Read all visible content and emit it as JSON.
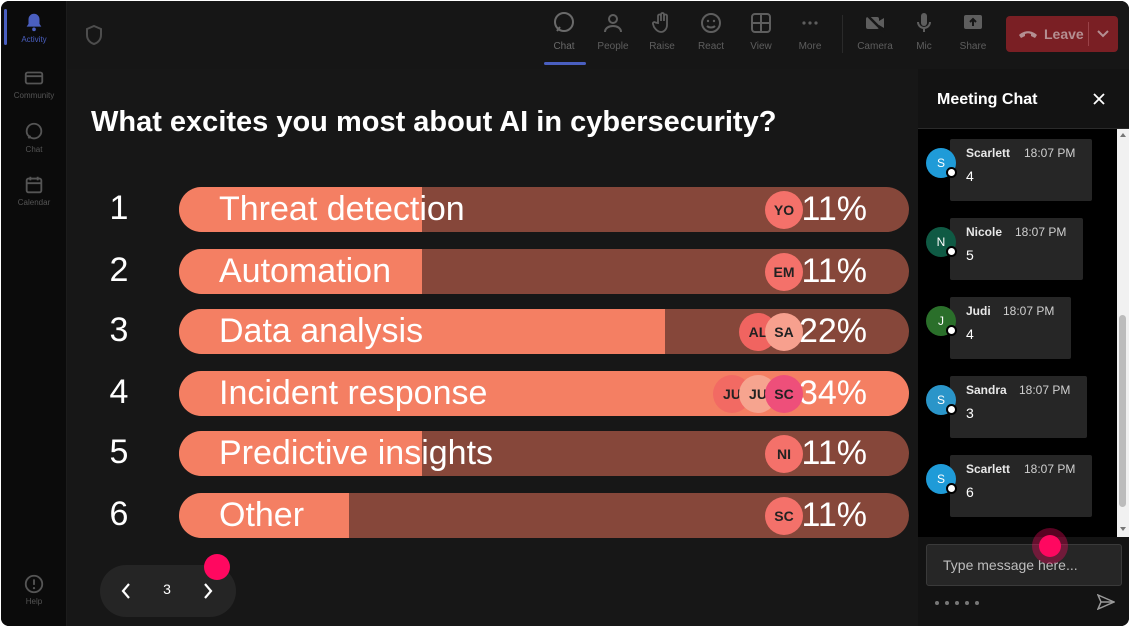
{
  "rail": {
    "items": [
      {
        "label": "Activity",
        "icon": "bell-icon",
        "active": true
      },
      {
        "label": "Community",
        "icon": "community-icon",
        "active": false
      },
      {
        "label": "Chat",
        "icon": "chat-icon",
        "active": false
      },
      {
        "label": "Calendar",
        "icon": "calendar-icon",
        "active": false
      }
    ],
    "help_label": "Help"
  },
  "toolbar": {
    "buttons": [
      {
        "label": "Chat",
        "icon": "chat-icon",
        "active": true
      },
      {
        "label": "People",
        "icon": "people-icon"
      },
      {
        "label": "Raise",
        "icon": "hand-icon"
      },
      {
        "label": "React",
        "icon": "emoji-icon"
      },
      {
        "label": "View",
        "icon": "grid-icon"
      },
      {
        "label": "More",
        "icon": "more-icon"
      },
      {
        "label": "Camera",
        "icon": "camera-off-icon"
      },
      {
        "label": "Mic",
        "icon": "mic-icon"
      },
      {
        "label": "Share",
        "icon": "share-icon"
      }
    ],
    "leave_label": "Leave"
  },
  "poll": {
    "question": "What excites you most about AI in cybersecurity?",
    "options": [
      {
        "number": "1",
        "label": "Threat detection",
        "percent_text": "11%",
        "percent": 11,
        "voters": [
          {
            "initials": "YO",
            "color": "#f4716a"
          }
        ]
      },
      {
        "number": "2",
        "label": "Automation",
        "percent_text": "11%",
        "percent": 11,
        "voters": [
          {
            "initials": "EM",
            "color": "#f4716a"
          }
        ]
      },
      {
        "number": "3",
        "label": "Data analysis",
        "percent_text": "22%",
        "percent": 22,
        "voters": [
          {
            "initials": "AL",
            "color": "#f06460"
          },
          {
            "initials": "SA",
            "color": "#f7a08e"
          }
        ]
      },
      {
        "number": "4",
        "label": "Incident response",
        "percent_text": "34%",
        "percent": 34,
        "voters": [
          {
            "initials": "JU",
            "color": "#f26a63"
          },
          {
            "initials": "JU",
            "color": "#f6a48f"
          },
          {
            "initials": "SC",
            "color": "#ee4f7a"
          }
        ]
      },
      {
        "number": "5",
        "label": "Predictive insights",
        "percent_text": "11%",
        "percent": 11,
        "voters": [
          {
            "initials": "NI",
            "color": "#f4716a"
          }
        ]
      },
      {
        "number": "6",
        "label": "Other",
        "percent_text": "11%",
        "percent": 11,
        "voters": [
          {
            "initials": "SC",
            "color": "#f4716a"
          }
        ]
      }
    ],
    "page": "3"
  },
  "chat": {
    "title": "Meeting Chat",
    "messages": [
      {
        "initial": "S",
        "avatar_color": "#1f9bd8",
        "name": "Scarlett",
        "time": "18:07 PM",
        "text": "4"
      },
      {
        "initial": "N",
        "avatar_color": "#0f5a44",
        "name": "Nicole",
        "time": "18:07 PM",
        "text": "5"
      },
      {
        "initial": "J",
        "avatar_color": "#2a6f2a",
        "name": "Judi",
        "time": "18:07 PM",
        "text": "4"
      },
      {
        "initial": "S",
        "avatar_color": "#2a95c9",
        "name": "Sandra",
        "time": "18:07 PM",
        "text": "3"
      },
      {
        "initial": "S",
        "avatar_color": "#1f9bd8",
        "name": "Scarlett",
        "time": "18:07 PM",
        "text": "6"
      }
    ],
    "input_placeholder": "Type message here..."
  },
  "colors": {
    "bar_fill": "#f47f63",
    "bar_track": "#86473a",
    "accent": "#4a5fc0",
    "leave": "#7a1f24",
    "cursor_dot": "#ff0860"
  }
}
